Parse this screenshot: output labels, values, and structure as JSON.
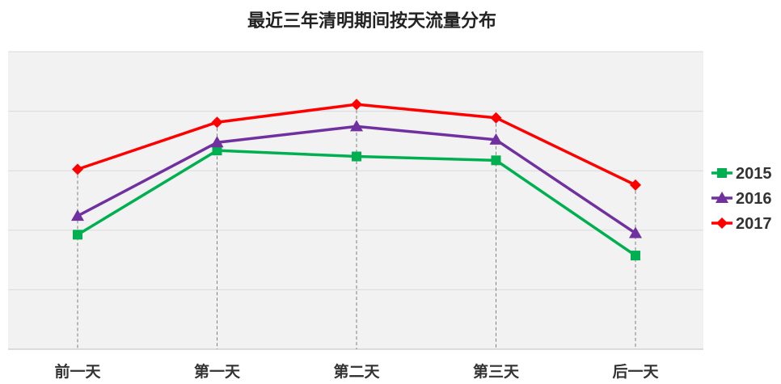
{
  "chart_data": {
    "type": "line",
    "title": "最近三年清明期间按天流量分布",
    "xlabel": "",
    "ylabel": "",
    "categories": [
      "前一天",
      "第一天",
      "第二天",
      "第三天",
      "后一天"
    ],
    "ylim": [
      0,
      100
    ],
    "y_ticks": [
      0,
      20,
      40,
      60,
      80,
      100
    ],
    "grid": true,
    "legend_position": "right",
    "series": [
      {
        "name": "2015",
        "values": [
          38.5,
          66.8,
          64.8,
          63.5,
          31.5
        ],
        "color": "#00b050",
        "marker": "square"
      },
      {
        "name": "2016",
        "values": [
          44.8,
          69.5,
          74.9,
          70.4,
          39.0
        ],
        "color": "#7030a0",
        "marker": "triangle"
      },
      {
        "name": "2017",
        "values": [
          60.5,
          76.3,
          82.3,
          77.8,
          55.2
        ],
        "color": "#ff0000",
        "marker": "diamond"
      }
    ]
  }
}
